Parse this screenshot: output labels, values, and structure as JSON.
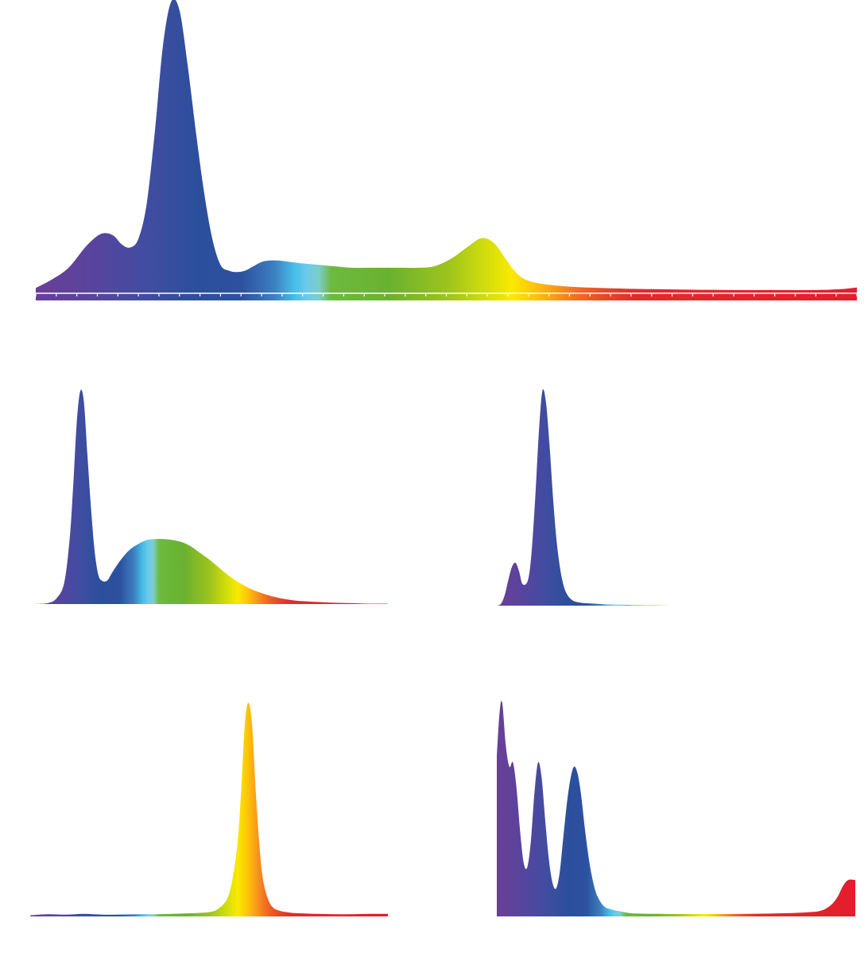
{
  "chart_data": [
    {
      "type": "area",
      "panel": "top-wide",
      "xlim": [
        380,
        780
      ],
      "ylim": [
        0,
        1
      ],
      "grid": false,
      "x": [
        380,
        388,
        396,
        404,
        410,
        414,
        418,
        422,
        426,
        430,
        434,
        438,
        442,
        446,
        450,
        454,
        458,
        462,
        466,
        470,
        474,
        478,
        482,
        486,
        490,
        494,
        498,
        504,
        510,
        518,
        526,
        534,
        542,
        550,
        558,
        566,
        574,
        582,
        590,
        596,
        600,
        604,
        608,
        612,
        616,
        620,
        626,
        634,
        644,
        660,
        680,
        700,
        720,
        740,
        760,
        772,
        780
      ],
      "y": [
        0.01,
        0.04,
        0.08,
        0.15,
        0.19,
        0.2,
        0.19,
        0.16,
        0.15,
        0.18,
        0.3,
        0.55,
        0.85,
        1.0,
        0.97,
        0.78,
        0.55,
        0.34,
        0.18,
        0.09,
        0.07,
        0.065,
        0.07,
        0.085,
        0.1,
        0.105,
        0.105,
        0.1,
        0.095,
        0.09,
        0.085,
        0.08,
        0.08,
        0.08,
        0.08,
        0.08,
        0.085,
        0.11,
        0.15,
        0.18,
        0.18,
        0.16,
        0.12,
        0.08,
        0.05,
        0.035,
        0.025,
        0.018,
        0.013,
        0.009,
        0.006,
        0.004,
        0.003,
        0.003,
        0.003,
        0.006,
        0.012
      ]
    },
    {
      "type": "area",
      "panel": "middle-left",
      "xlim": [
        380,
        780
      ],
      "ylim": [
        0,
        1
      ],
      "grid": false,
      "x": [
        380,
        400,
        410,
        418,
        424,
        428,
        432,
        436,
        440,
        444,
        448,
        452,
        456,
        460,
        466,
        472,
        480,
        490,
        500,
        510,
        520,
        530,
        540,
        550,
        560,
        570,
        580,
        590,
        600,
        610,
        620,
        630,
        640,
        650,
        660,
        670,
        680,
        700,
        720,
        740,
        760,
        780
      ],
      "y": [
        0,
        0.005,
        0.03,
        0.1,
        0.3,
        0.55,
        0.85,
        1.0,
        0.95,
        0.7,
        0.45,
        0.25,
        0.14,
        0.11,
        0.11,
        0.15,
        0.2,
        0.25,
        0.28,
        0.3,
        0.305,
        0.305,
        0.3,
        0.29,
        0.27,
        0.24,
        0.21,
        0.175,
        0.14,
        0.11,
        0.085,
        0.065,
        0.05,
        0.037,
        0.027,
        0.02,
        0.015,
        0.01,
        0.006,
        0.004,
        0.002,
        0.002
      ]
    },
    {
      "type": "area",
      "panel": "middle-right",
      "xlim": [
        380,
        780
      ],
      "ylim": [
        0,
        1
      ],
      "grid": false,
      "x": [
        380,
        384,
        388,
        392,
        396,
        400,
        404,
        408,
        414,
        418,
        422,
        426,
        430,
        434,
        438,
        442,
        446,
        450,
        454,
        458,
        462,
        466,
        470,
        476,
        484,
        492,
        500,
        510,
        520,
        530,
        540,
        560,
        580
      ],
      "y": [
        0,
        0.01,
        0.05,
        0.12,
        0.18,
        0.2,
        0.16,
        0.1,
        0.12,
        0.25,
        0.5,
        0.8,
        1.0,
        0.95,
        0.75,
        0.5,
        0.3,
        0.17,
        0.09,
        0.05,
        0.03,
        0.02,
        0.016,
        0.012,
        0.01,
        0.008,
        0.006,
        0.005,
        0.004,
        0.003,
        0.002,
        0.001,
        0
      ]
    },
    {
      "type": "area",
      "panel": "bottom-left",
      "xlim": [
        380,
        780
      ],
      "ylim": [
        0,
        1
      ],
      "grid": false,
      "x": [
        380,
        400,
        420,
        440,
        460,
        480,
        500,
        520,
        540,
        560,
        580,
        590,
        600,
        606,
        612,
        616,
        620,
        624,
        628,
        632,
        636,
        640,
        646,
        652,
        660,
        670,
        680,
        700,
        720,
        740,
        760,
        780
      ],
      "y": [
        0.005,
        0.01,
        0.008,
        0.012,
        0.008,
        0.008,
        0.01,
        0.01,
        0.012,
        0.015,
        0.02,
        0.035,
        0.08,
        0.17,
        0.35,
        0.6,
        0.9,
        1.0,
        0.9,
        0.6,
        0.35,
        0.18,
        0.08,
        0.04,
        0.025,
        0.018,
        0.015,
        0.012,
        0.01,
        0.01,
        0.012,
        0.012
      ]
    },
    {
      "type": "area",
      "panel": "bottom-right",
      "xlim": [
        380,
        780
      ],
      "ylim": [
        0,
        1
      ],
      "grid": false,
      "x": [
        380,
        383,
        386,
        390,
        394,
        398,
        402,
        406,
        410,
        414,
        418,
        422,
        426,
        430,
        434,
        438,
        442,
        446,
        450,
        454,
        458,
        462,
        466,
        470,
        474,
        478,
        482,
        486,
        490,
        494,
        498,
        502,
        506,
        510,
        516,
        522,
        530,
        540,
        550,
        560,
        580,
        600,
        620,
        640,
        660,
        680,
        700,
        720,
        740,
        752,
        760,
        766,
        772,
        780
      ],
      "y": [
        0.75,
        0.95,
        1.0,
        0.8,
        0.7,
        0.72,
        0.6,
        0.4,
        0.25,
        0.23,
        0.35,
        0.58,
        0.72,
        0.65,
        0.45,
        0.27,
        0.16,
        0.13,
        0.2,
        0.36,
        0.52,
        0.64,
        0.7,
        0.67,
        0.57,
        0.42,
        0.29,
        0.19,
        0.12,
        0.08,
        0.055,
        0.04,
        0.035,
        0.03,
        0.025,
        0.02,
        0.015,
        0.013,
        0.012,
        0.012,
        0.011,
        0.011,
        0.011,
        0.011,
        0.012,
        0.013,
        0.015,
        0.018,
        0.025,
        0.05,
        0.09,
        0.14,
        0.17,
        0.17
      ]
    }
  ]
}
